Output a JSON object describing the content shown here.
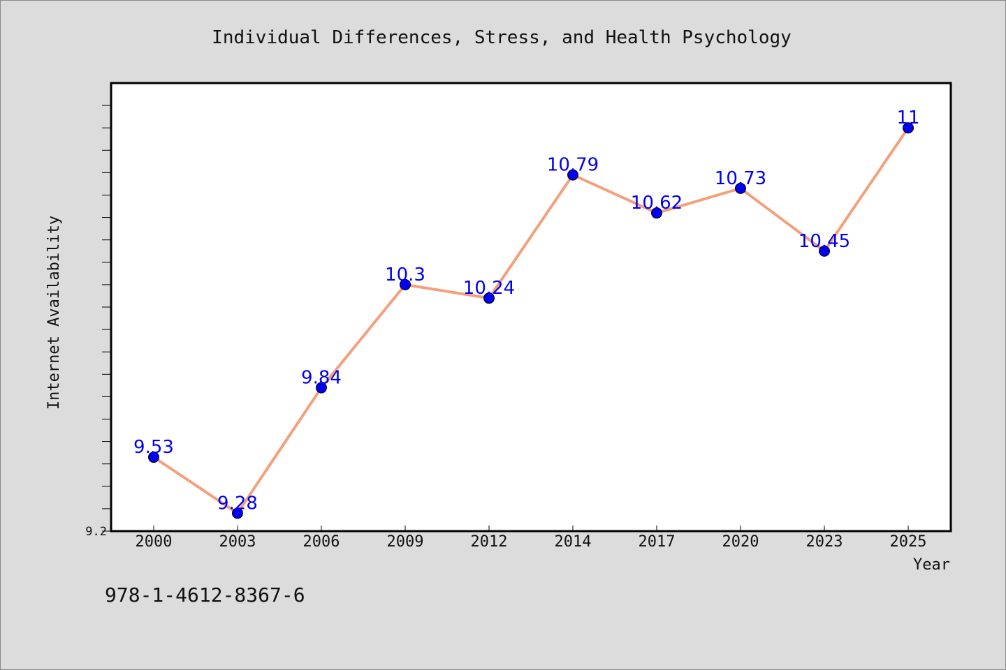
{
  "chart_data": {
    "type": "line",
    "title": "Individual Differences, Stress, and Health Psychology",
    "xlabel": "Year",
    "ylabel": "Internet Availability",
    "categories": [
      "2000",
      "2003",
      "2006",
      "2009",
      "2012",
      "2014",
      "2017",
      "2020",
      "2023",
      "2025"
    ],
    "series": [
      {
        "values": [
          9.53,
          9.28,
          9.84,
          10.3,
          10.24,
          10.79,
          10.62,
          10.73,
          10.45,
          11
        ]
      }
    ],
    "data_labels": [
      "9.53",
      "9.28",
      "9.84",
      "10.3",
      "10.24",
      "10.79",
      "10.62",
      "10.73",
      "10.45",
      "11"
    ],
    "y_tick_labels": [
      "9.2"
    ],
    "ylim": [
      9.2,
      11.2
    ],
    "grid": false,
    "legend": "none",
    "colors": {
      "line": "#f4a07c",
      "marker": "#0000ee",
      "label": "#0000ee",
      "background": "#dcdcdc",
      "plot_bg": "#ffffff"
    }
  },
  "footer": {
    "isbn": "978-1-4612-8367-6"
  }
}
